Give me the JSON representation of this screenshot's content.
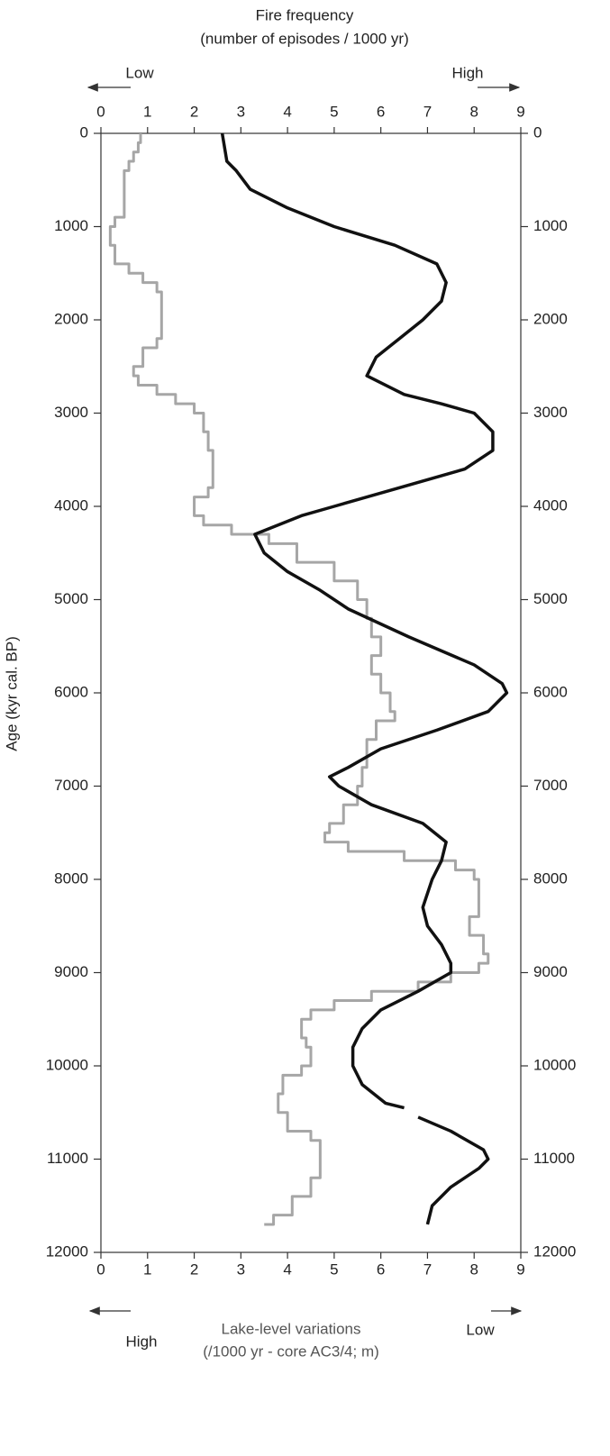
{
  "chart_data": {
    "type": "line",
    "title": "Fire frequency",
    "subtitle": "(number of episodes / 1000 yr)",
    "top_low": "Low",
    "top_high": "High",
    "xlabel": "Lake-level variations",
    "xlabel_sub": "(/1000 yr - core AC3/4; m)",
    "bottom_high": "High",
    "bottom_low": "Low",
    "ylabel": "Age (kyr cal. BP)",
    "xlim": [
      0,
      9
    ],
    "xticks": [
      0,
      1,
      2,
      3,
      4,
      5,
      6,
      7,
      8,
      9
    ],
    "ylim": [
      0,
      12000
    ],
    "yticks": [
      0,
      1000,
      2000,
      3000,
      4000,
      5000,
      6000,
      7000,
      8000,
      9000,
      10000,
      11000,
      12000
    ],
    "y_inverted": true,
    "series": [
      {
        "color": "#a6a6a6",
        "step": true,
        "y": [
          0,
          100,
          200,
          300,
          400,
          700,
          900,
          1000,
          1100,
          1200,
          1400,
          1500,
          1600,
          1700,
          2000,
          2200,
          2300,
          2500,
          2600,
          2700,
          2800,
          2900,
          3000,
          3200,
          3400,
          3800,
          3900,
          4000,
          4100,
          4200,
          4300,
          4400,
          4600,
          4800,
          5000,
          5200,
          5400,
          5600,
          5800,
          6000,
          6200,
          6300,
          6500,
          6800,
          7000,
          7200,
          7400,
          7500,
          7600,
          7700,
          7800,
          7900,
          8000,
          8200,
          8400,
          8600,
          8800,
          8900,
          9000,
          9100,
          9200,
          9300,
          9400,
          9500,
          9700,
          9800,
          10000,
          10100,
          10300,
          10500,
          10700,
          10800,
          11000,
          11200,
          11400,
          11600,
          11700
        ],
        "values": [
          0.85,
          0.8,
          0.7,
          0.6,
          0.5,
          0.5,
          0.3,
          0.2,
          0.2,
          0.3,
          0.6,
          0.9,
          1.2,
          1.3,
          1.3,
          1.2,
          0.9,
          0.7,
          0.8,
          1.2,
          1.6,
          2.0,
          2.2,
          2.3,
          2.4,
          2.3,
          2.0,
          2.0,
          2.2,
          2.8,
          3.6,
          4.2,
          5.0,
          5.5,
          5.7,
          5.8,
          6.0,
          5.8,
          6.0,
          6.2,
          6.3,
          5.9,
          5.7,
          5.6,
          5.5,
          5.2,
          4.9,
          4.8,
          5.3,
          6.5,
          7.6,
          8.0,
          8.1,
          8.1,
          7.9,
          8.2,
          8.3,
          8.1,
          7.5,
          6.8,
          5.8,
          5.0,
          4.5,
          4.3,
          4.4,
          4.5,
          4.3,
          3.9,
          3.8,
          4.0,
          4.5,
          4.7,
          4.7,
          4.5,
          4.1,
          3.7,
          3.5
        ]
      },
      {
        "color": "#111111",
        "step": false,
        "y": [
          0,
          300,
          400,
          600,
          800,
          1000,
          1200,
          1400,
          1600,
          1800,
          2000,
          2200,
          2400,
          2600,
          2800,
          2900,
          3000,
          3200,
          3400,
          3600,
          3800,
          4000,
          4100,
          4300,
          4500,
          4700,
          4900,
          5100,
          5400,
          5700,
          5900,
          6000,
          6200,
          6400,
          6600,
          6800,
          6900,
          7000,
          7200,
          7400,
          7600,
          7800,
          8000,
          8300,
          8500,
          8700,
          8900,
          9000,
          9200,
          9400,
          9600,
          9800,
          10000,
          10200,
          10400,
          10450,
          10500,
          10550,
          10700,
          10900,
          11000,
          11100,
          11300,
          11500,
          11700
        ],
        "values": [
          2.6,
          2.7,
          2.9,
          3.2,
          4.0,
          5.0,
          6.3,
          7.2,
          7.4,
          7.3,
          6.9,
          6.4,
          5.9,
          5.7,
          6.5,
          7.3,
          8.0,
          8.4,
          8.4,
          7.8,
          6.4,
          5.0,
          4.3,
          3.3,
          3.5,
          4.0,
          4.7,
          5.3,
          6.6,
          8.0,
          8.6,
          8.7,
          8.3,
          7.2,
          6.0,
          5.3,
          4.9,
          5.1,
          5.8,
          6.9,
          7.4,
          7.3,
          7.1,
          6.9,
          7.0,
          7.3,
          7.5,
          7.5,
          6.8,
          6.0,
          5.6,
          5.4,
          5.4,
          5.6,
          6.1,
          6.5,
          null,
          6.8,
          7.5,
          8.2,
          8.3,
          8.1,
          7.5,
          7.1,
          7.0
        ]
      }
    ]
  }
}
